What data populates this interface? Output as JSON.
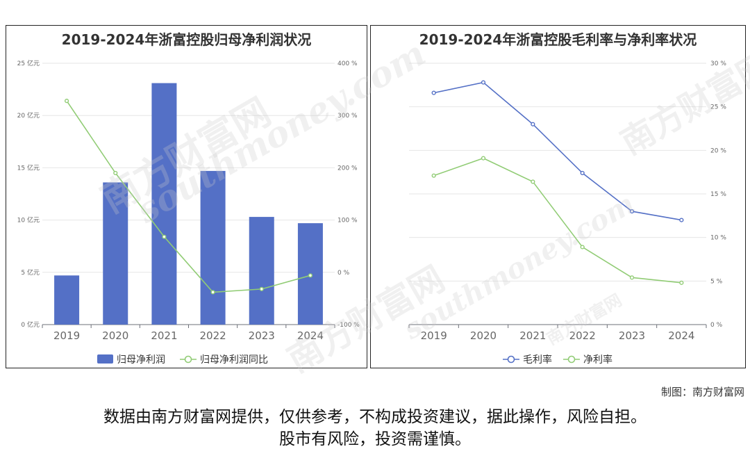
{
  "chart_data": [
    {
      "type": "bar",
      "title": "2019-2024年浙富控股归母净利润状况",
      "categories": [
        "2019",
        "2020",
        "2021",
        "2022",
        "2023",
        "2024"
      ],
      "series": [
        {
          "name": "归母净利润",
          "type": "bar",
          "axis": "left",
          "values": [
            4.7,
            13.6,
            23.1,
            14.7,
            10.3,
            9.7
          ]
        },
        {
          "name": "归母净利润同比",
          "type": "line",
          "axis": "right",
          "values": [
            328,
            190,
            68,
            -38,
            -32,
            -6
          ]
        }
      ],
      "y_left": {
        "ticks": [
          "0 亿元",
          "5 亿元",
          "10 亿元",
          "15 亿元",
          "20 亿元",
          "25 亿元"
        ],
        "ylim": [
          0,
          25
        ]
      },
      "y_right": {
        "ticks": [
          "-100 %",
          "0 %",
          "100 %",
          "200 %",
          "300 %",
          "400 %"
        ],
        "ylim": [
          -100,
          400
        ]
      },
      "legend": "bottom",
      "colors": {
        "bar": "#5470c6",
        "line": "#91cc75"
      }
    },
    {
      "type": "line",
      "title": "2019-2024年浙富控股毛利率与净利率状况",
      "categories": [
        "2019",
        "2020",
        "2021",
        "2022",
        "2023",
        "2024"
      ],
      "series": [
        {
          "name": "毛利率",
          "values": [
            26.6,
            27.8,
            23.0,
            17.4,
            13.0,
            12.0
          ]
        },
        {
          "name": "净利率",
          "values": [
            17.1,
            19.1,
            16.4,
            8.9,
            5.4,
            4.8
          ]
        }
      ],
      "y_right": {
        "ticks": [
          "0 %",
          "5 %",
          "10 %",
          "15 %",
          "20 %",
          "25 %",
          "30 %"
        ],
        "ylim": [
          0,
          30
        ]
      },
      "legend": "bottom",
      "colors": {
        "毛利率": "#5470c6",
        "净利率": "#91cc75"
      }
    }
  ],
  "footer": {
    "credit": "制图：南方财富网",
    "disclaimer_line1": "数据由南方财富网提供，仅供参考，不构成投资建议，据此操作，风险自担。",
    "disclaimer_line2": "股市有风险，投资需谨慎。"
  },
  "watermark": {
    "cn": "南方财富网",
    "en": "southmoney.com"
  }
}
